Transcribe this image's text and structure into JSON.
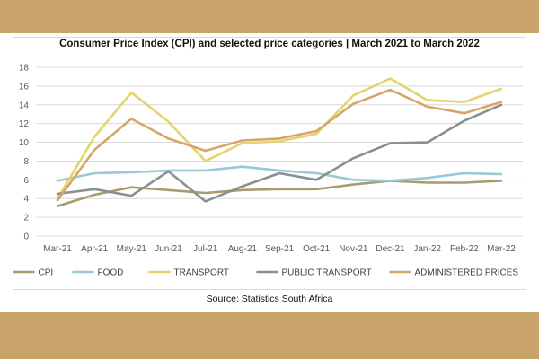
{
  "chart_data": {
    "type": "line",
    "title": "Consumer Price Index (CPI) and selected price categories | March 2021 to March 2022",
    "xlabel": "",
    "ylabel": "",
    "ylim": [
      0,
      18
    ],
    "yticks": [
      0,
      2,
      4,
      6,
      8,
      10,
      12,
      14,
      16,
      18
    ],
    "grid": true,
    "legend_position": "bottom",
    "categories": [
      "Mar-21",
      "Apr-21",
      "May-21",
      "Jun-21",
      "Jul-21",
      "Aug-21",
      "Sep-21",
      "Oct-21",
      "Nov-21",
      "Dec-21",
      "Jan-22",
      "Feb-22",
      "Mar-22"
    ],
    "series": [
      {
        "name": "CPI",
        "color": "#a89c6e",
        "values": [
          3.2,
          4.4,
          5.2,
          4.9,
          4.6,
          4.9,
          5.0,
          5.0,
          5.5,
          5.9,
          5.7,
          5.7,
          5.9
        ]
      },
      {
        "name": "FOOD",
        "color": "#9ac8d4",
        "values": [
          5.9,
          6.7,
          6.8,
          7.0,
          7.0,
          7.4,
          7.0,
          6.7,
          6.0,
          5.9,
          6.2,
          6.7,
          6.6
        ]
      },
      {
        "name": "TRANSPORT",
        "color": "#e4d46c",
        "values": [
          4.0,
          10.6,
          15.3,
          12.2,
          8.0,
          9.9,
          10.1,
          10.9,
          15.0,
          16.8,
          14.5,
          14.3,
          15.7
        ]
      },
      {
        "name": "PUBLIC TRANSPORT",
        "color": "#8a908f",
        "values": [
          4.5,
          5.0,
          4.3,
          6.9,
          3.7,
          5.3,
          6.7,
          6.0,
          8.3,
          9.9,
          10.0,
          12.3,
          14.0
        ]
      },
      {
        "name": "ADMINISTERED PRICES",
        "color": "#d4a66a",
        "values": [
          3.8,
          9.2,
          12.5,
          10.4,
          9.1,
          10.2,
          10.4,
          11.2,
          14.1,
          15.6,
          13.8,
          13.1,
          14.3
        ]
      }
    ]
  },
  "source": "Source: Statistics South Africa"
}
